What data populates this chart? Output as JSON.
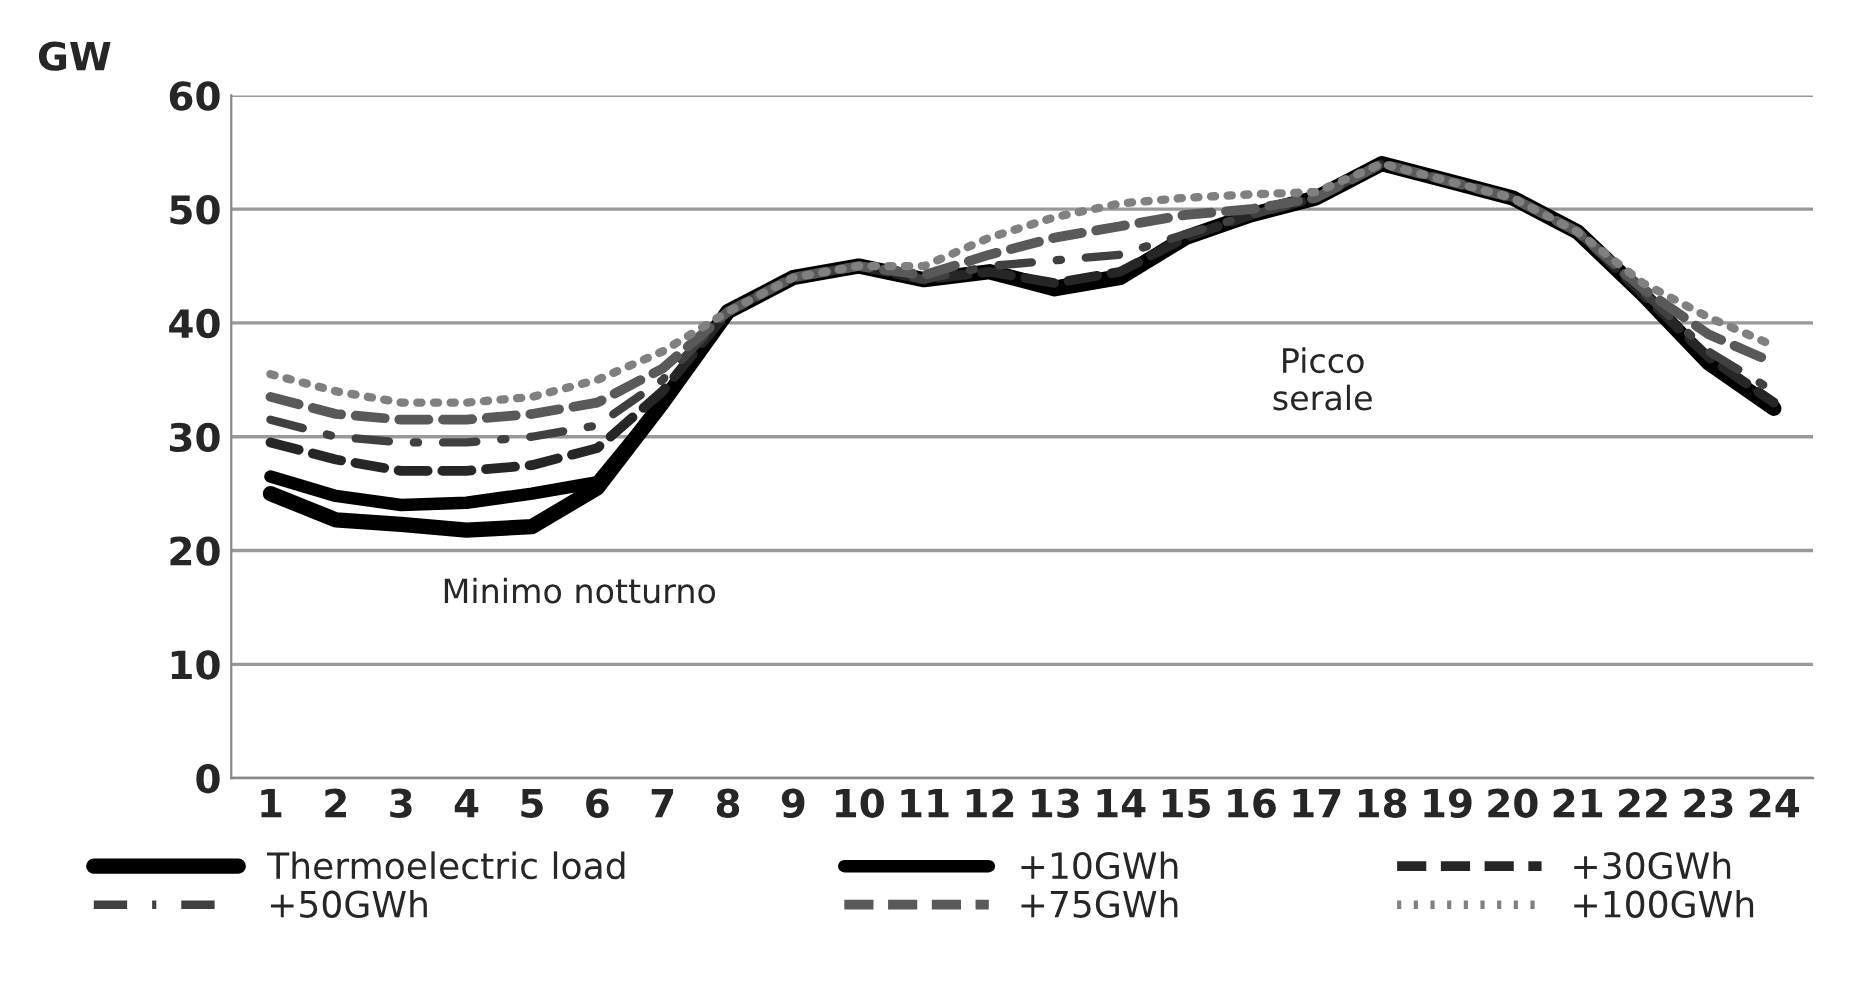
{
  "chart_data": {
    "type": "line",
    "ylabel": "GW",
    "categories": [
      "1",
      "2",
      "3",
      "4",
      "5",
      "6",
      "7",
      "8",
      "9",
      "10",
      "11",
      "12",
      "13",
      "14",
      "15",
      "16",
      "17",
      "18",
      "19",
      "20",
      "21",
      "22",
      "23",
      "24"
    ],
    "series": [
      {
        "name": "Thermoelectric load",
        "color": "#000000",
        "line_style": "solid",
        "values": [
          25,
          22.7,
          22.3,
          21.8,
          22.1,
          25.5,
          33,
          41,
          44,
          45,
          43.8,
          44.5,
          43,
          44,
          47.5,
          49.5,
          51,
          54,
          52.5,
          51,
          48,
          42.5,
          36.5,
          32.5
        ]
      },
      {
        "name": "+10GWh",
        "color": "#000000",
        "line_style": "solid",
        "values": [
          26.5,
          24.8,
          24,
          24.2,
          25,
          26,
          33,
          41,
          44,
          45,
          43.8,
          44.5,
          43.2,
          44.2,
          47.5,
          49.5,
          51,
          54,
          52.5,
          51,
          48,
          42.5,
          36.5,
          32.5
        ]
      },
      {
        "name": "+30GWh",
        "color": "#262626",
        "line_style": "dashed",
        "values": [
          29.5,
          28,
          27,
          27,
          27.5,
          29,
          34,
          41,
          44,
          45,
          43.8,
          44.5,
          43.5,
          44.5,
          47.5,
          49.5,
          51,
          54,
          52.5,
          51,
          48,
          42.5,
          37,
          33
        ]
      },
      {
        "name": "+50GWh",
        "color": "#404040",
        "line_style": "dashdot",
        "values": [
          31.5,
          30,
          29.5,
          29.5,
          30,
          31,
          35,
          41,
          44,
          45,
          43.8,
          45,
          45.5,
          46,
          47.8,
          49.5,
          51,
          54,
          52.5,
          51,
          48,
          42.7,
          37.5,
          34
        ]
      },
      {
        "name": "+75GWh",
        "color": "#595959",
        "line_style": "dashed",
        "values": [
          33.5,
          32,
          31.5,
          31.5,
          32,
          33,
          36,
          41,
          44,
          45,
          44.2,
          46,
          47.5,
          48.5,
          49.5,
          50,
          51,
          54,
          52.5,
          51,
          48,
          43,
          39,
          36.5
        ]
      },
      {
        "name": "+100GWh",
        "color": "#808080",
        "line_style": "dotted",
        "values": [
          35.5,
          34,
          33,
          33,
          33.5,
          35,
          37.5,
          41,
          44,
          45,
          45,
          47.5,
          49.3,
          50.5,
          51,
          51.3,
          51.5,
          54,
          52.5,
          51,
          48,
          43.5,
          40.5,
          38
        ]
      }
    ],
    "ylim": [
      0,
      60
    ],
    "yticks": [
      0,
      10,
      20,
      30,
      40,
      50,
      60
    ],
    "grid": "y",
    "legend": "bottom",
    "annotations": [
      "Minimo notturno",
      "Picco\nserale"
    ]
  }
}
